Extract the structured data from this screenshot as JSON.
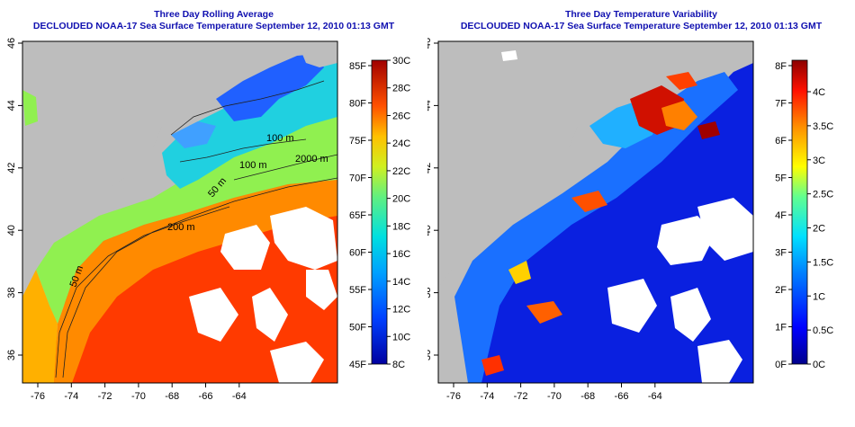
{
  "colors": {
    "land": "#bdbdbd",
    "cloud": "#ffffff",
    "title": "#1010b0",
    "contour": "#202020"
  },
  "panels": [
    {
      "name": "average",
      "title_line1": "Three Day Rolling Average",
      "title_line2": "DECLOUDED NOAA-17 Sea Surface Temperature September 12, 2010 01:13 GMT",
      "contour_labels": [
        "100 m",
        "100 m",
        "2000 m",
        "200 m",
        "50 m",
        "50 m"
      ],
      "colorbar": {
        "left_labels": [
          "85F",
          "80F",
          "75F",
          "70F",
          "65F",
          "60F",
          "55F",
          "50F",
          "45F"
        ],
        "right_labels": [
          "30C",
          "28C",
          "26C",
          "24C",
          "22C",
          "20C",
          "18C",
          "16C",
          "14C",
          "12C",
          "10C",
          "8C"
        ]
      }
    },
    {
      "name": "variability",
      "title_line1": "Three Day Temperature Variability",
      "title_line2": "DECLOUDED NOAA-17 Sea Surface Temperature September 12, 2010 01:13 GMT",
      "contour_labels": [],
      "colorbar": {
        "left_labels": [
          "8F",
          "7F",
          "6F",
          "5F",
          "4F",
          "3F",
          "2F",
          "1F",
          "0F"
        ],
        "right_labels": [
          "4C",
          "3.5C",
          "3C",
          "2.5C",
          "2C",
          "1.5C",
          "1C",
          "0.5C",
          "0C"
        ]
      }
    }
  ],
  "axes": {
    "lon_labels": [
      "-76",
      "-74",
      "-72",
      "-70",
      "-68",
      "-66",
      "-64"
    ],
    "lat_labels": [
      "46",
      "44",
      "42",
      "40",
      "38",
      "36"
    ]
  }
}
